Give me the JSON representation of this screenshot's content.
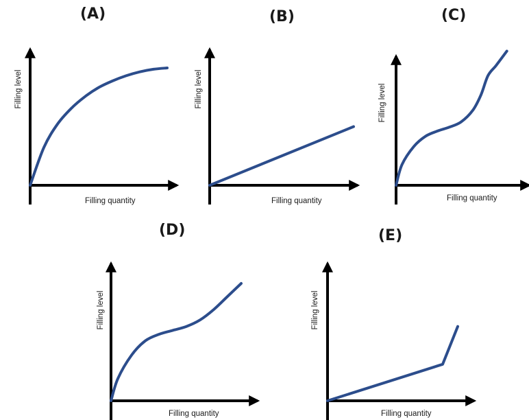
{
  "chart_data": [
    {
      "type": "line",
      "title": "(A)",
      "xlabel": "Filling quantity",
      "ylabel": "Filling level",
      "curve_shape": "concave",
      "x": [
        0,
        1,
        2,
        3,
        4,
        5,
        6,
        7,
        8,
        9,
        10
      ],
      "y": [
        0,
        2.9,
        4.7,
        5.9,
        6.8,
        7.5,
        8.0,
        8.4,
        8.7,
        8.9,
        9.0
      ]
    },
    {
      "type": "line",
      "title": "(B)",
      "xlabel": "Filling quantity",
      "ylabel": "Filling level",
      "curve_shape": "linear",
      "x": [
        0,
        10
      ],
      "y": [
        0,
        4.5
      ]
    },
    {
      "type": "line",
      "title": "(C)",
      "xlabel": "Filling quantity",
      "ylabel": "Filling level",
      "curve_shape": "concave-then-convex-then-linear",
      "x": [
        0,
        0.5,
        1.5,
        2.5,
        3.5,
        4.5,
        5.5,
        6.5,
        7.2,
        7.8,
        8.5,
        9.4
      ],
      "y": [
        0,
        1.6,
        3.0,
        3.8,
        4.2,
        4.5,
        4.9,
        5.8,
        7.0,
        8.5,
        9.3,
        10.4
      ]
    },
    {
      "type": "line",
      "title": "(D)",
      "xlabel": "Filling quantity",
      "ylabel": "Filling level",
      "curve_shape": "concave-then-convex",
      "x": [
        0,
        0.5,
        1.5,
        2.5,
        3.5,
        4.5,
        5.5,
        6.5,
        7.5,
        8.5,
        9.5
      ],
      "y": [
        0,
        1.7,
        3.5,
        4.6,
        5.1,
        5.4,
        5.7,
        6.2,
        7.0,
        8.0,
        9.0
      ]
    },
    {
      "type": "line",
      "title": "(E)",
      "xlabel": "Filling quantity",
      "ylabel": "Filling level",
      "curve_shape": "linear-then-steeper-linear",
      "x": [
        0,
        8.4,
        9.5
      ],
      "y": [
        0,
        2.8,
        5.7
      ]
    }
  ],
  "colors": {
    "curve": "#2c4d8c",
    "axis": "#000000",
    "text": "#1a1a1a"
  }
}
